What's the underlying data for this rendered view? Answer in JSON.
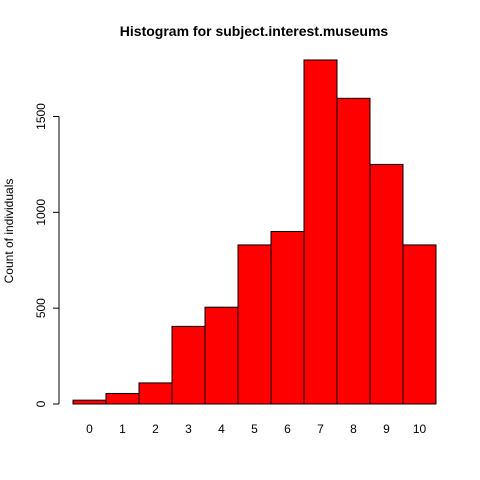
{
  "chart_data": {
    "type": "bar",
    "title": "Histogram for subject.interest.museums",
    "xlabel": "",
    "ylabel": "Count of individuals",
    "categories": [
      "0",
      "1",
      "2",
      "3",
      "4",
      "5",
      "6",
      "7",
      "8",
      "9",
      "10"
    ],
    "values": [
      20,
      55,
      110,
      405,
      505,
      830,
      900,
      1795,
      1595,
      1250,
      830
    ],
    "ylim": [
      0,
      1800
    ],
    "yticks": [
      "0",
      "500",
      "1000",
      "1500"
    ],
    "grid": false,
    "legend": "none",
    "bar_color": "#ff0000",
    "bar_edge_color": "#000000"
  }
}
